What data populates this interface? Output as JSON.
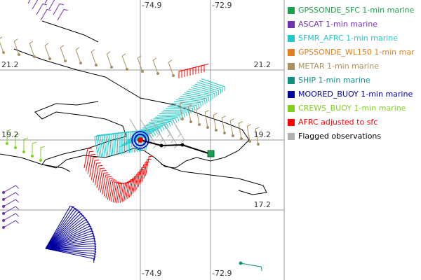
{
  "map": {
    "lon_grid": [
      -74.9,
      -72.9
    ],
    "lat_grid": [
      21.2,
      19.2,
      17.2
    ],
    "legend": [
      {
        "label": "GPSSONDE_SFC 1-min marine",
        "color": "#1e9e50"
      },
      {
        "label": "ASCAT 1-min marine",
        "color": "#7030b0"
      },
      {
        "label": "SFMR_AFRC 1-min marine",
        "color": "#20c8c8"
      },
      {
        "label": "GPSSONDE_WL150 1-min mar",
        "color": "#e08020"
      },
      {
        "label": "METAR 1-min marine",
        "color": "#a89060"
      },
      {
        "label": "SHIP 1-min marine",
        "color": "#109080"
      },
      {
        "label": "MOORED_BUOY 1-min marine",
        "color": "#0000a0"
      },
      {
        "label": "CREWS_BUOY 1-min marine",
        "color": "#80d020"
      },
      {
        "label": "AFRC adjusted to sfc",
        "color": "#ff0000"
      },
      {
        "label": "Flagged observations",
        "color": "#b0b0b0"
      }
    ]
  }
}
